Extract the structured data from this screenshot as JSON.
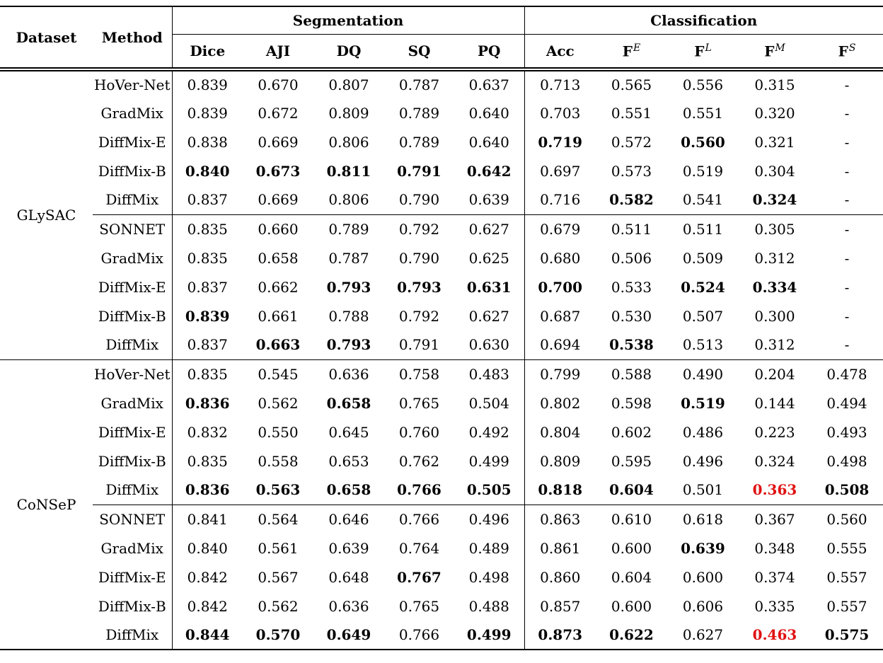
{
  "table": {
    "colors": {
      "highlight_red": "#e01212"
    },
    "header": {
      "dataset": "Dataset",
      "method": "Method",
      "groups": [
        {
          "label": "Segmentation",
          "columns": [
            {
              "base": "Dice",
              "sup": ""
            },
            {
              "base": "AJI",
              "sup": ""
            },
            {
              "base": "DQ",
              "sup": ""
            },
            {
              "base": "SQ",
              "sup": ""
            },
            {
              "base": "PQ",
              "sup": ""
            }
          ]
        },
        {
          "label": "Classification",
          "columns": [
            {
              "base": "Acc",
              "sup": ""
            },
            {
              "base": "F",
              "sup": "E"
            },
            {
              "base": "F",
              "sup": "L"
            },
            {
              "base": "F",
              "sup": "M"
            },
            {
              "base": "F",
              "sup": "S"
            }
          ]
        }
      ]
    },
    "datasets": [
      {
        "name": "GLySAC",
        "rows": [
          {
            "method": "HoVer-Net",
            "cells": [
              {
                "t": "0.839"
              },
              {
                "t": "0.670"
              },
              {
                "t": "0.807"
              },
              {
                "t": "0.787"
              },
              {
                "t": "0.637"
              },
              {
                "t": "0.713"
              },
              {
                "t": "0.565"
              },
              {
                "t": "0.556"
              },
              {
                "t": "0.315"
              },
              {
                "t": "-"
              }
            ]
          },
          {
            "method": "GradMix",
            "cells": [
              {
                "t": "0.839"
              },
              {
                "t": "0.672"
              },
              {
                "t": "0.809"
              },
              {
                "t": "0.789"
              },
              {
                "t": "0.640"
              },
              {
                "t": "0.703"
              },
              {
                "t": "0.551"
              },
              {
                "t": "0.551"
              },
              {
                "t": "0.320"
              },
              {
                "t": "-"
              }
            ]
          },
          {
            "method": "DiffMix-E",
            "cells": [
              {
                "t": "0.838"
              },
              {
                "t": "0.669"
              },
              {
                "t": "0.806"
              },
              {
                "t": "0.789"
              },
              {
                "t": "0.640"
              },
              {
                "t": "0.719",
                "b": true
              },
              {
                "t": "0.572"
              },
              {
                "t": "0.560",
                "b": true
              },
              {
                "t": "0.321"
              },
              {
                "t": "-"
              }
            ]
          },
          {
            "method": "DiffMix-B",
            "cells": [
              {
                "t": "0.840",
                "b": true
              },
              {
                "t": "0.673",
                "b": true
              },
              {
                "t": "0.811",
                "b": true
              },
              {
                "t": "0.791",
                "b": true
              },
              {
                "t": "0.642",
                "b": true
              },
              {
                "t": "0.697"
              },
              {
                "t": "0.573"
              },
              {
                "t": "0.519"
              },
              {
                "t": "0.304"
              },
              {
                "t": "-"
              }
            ]
          },
          {
            "method": "DiffMix",
            "cells": [
              {
                "t": "0.837"
              },
              {
                "t": "0.669"
              },
              {
                "t": "0.806"
              },
              {
                "t": "0.790"
              },
              {
                "t": "0.639"
              },
              {
                "t": "0.716"
              },
              {
                "t": "0.582",
                "b": true
              },
              {
                "t": "0.541"
              },
              {
                "t": "0.324",
                "b": true
              },
              {
                "t": "-"
              }
            ]
          },
          {
            "method": "SONNET",
            "rule_above": true,
            "cells": [
              {
                "t": "0.835"
              },
              {
                "t": "0.660"
              },
              {
                "t": "0.789"
              },
              {
                "t": "0.792"
              },
              {
                "t": "0.627"
              },
              {
                "t": "0.679"
              },
              {
                "t": "0.511"
              },
              {
                "t": "0.511"
              },
              {
                "t": "0.305"
              },
              {
                "t": "-"
              }
            ]
          },
          {
            "method": "GradMix",
            "cells": [
              {
                "t": "0.835"
              },
              {
                "t": "0.658"
              },
              {
                "t": "0.787"
              },
              {
                "t": "0.790"
              },
              {
                "t": "0.625"
              },
              {
                "t": "0.680"
              },
              {
                "t": "0.506"
              },
              {
                "t": "0.509"
              },
              {
                "t": "0.312"
              },
              {
                "t": "-"
              }
            ]
          },
          {
            "method": "DiffMix-E",
            "cells": [
              {
                "t": "0.837"
              },
              {
                "t": "0.662"
              },
              {
                "t": "0.793",
                "b": true
              },
              {
                "t": "0.793",
                "b": true
              },
              {
                "t": "0.631",
                "b": true
              },
              {
                "t": "0.700",
                "b": true
              },
              {
                "t": "0.533"
              },
              {
                "t": "0.524",
                "b": true
              },
              {
                "t": "0.334",
                "b": true
              },
              {
                "t": "-"
              }
            ]
          },
          {
            "method": "DiffMix-B",
            "cells": [
              {
                "t": "0.839",
                "b": true
              },
              {
                "t": "0.661"
              },
              {
                "t": "0.788"
              },
              {
                "t": "0.792"
              },
              {
                "t": "0.627"
              },
              {
                "t": "0.687"
              },
              {
                "t": "0.530"
              },
              {
                "t": "0.507"
              },
              {
                "t": "0.300"
              },
              {
                "t": "-"
              }
            ]
          },
          {
            "method": "DiffMix",
            "cells": [
              {
                "t": "0.837"
              },
              {
                "t": "0.663",
                "b": true
              },
              {
                "t": "0.793",
                "b": true
              },
              {
                "t": "0.791"
              },
              {
                "t": "0.630"
              },
              {
                "t": "0.694"
              },
              {
                "t": "0.538",
                "b": true
              },
              {
                "t": "0.513"
              },
              {
                "t": "0.312"
              },
              {
                "t": "-"
              }
            ]
          }
        ]
      },
      {
        "name": "CoNSeP",
        "rows": [
          {
            "method": "HoVer-Net",
            "cells": [
              {
                "t": "0.835"
              },
              {
                "t": "0.545"
              },
              {
                "t": "0.636"
              },
              {
                "t": "0.758"
              },
              {
                "t": "0.483"
              },
              {
                "t": "0.799"
              },
              {
                "t": "0.588"
              },
              {
                "t": "0.490"
              },
              {
                "t": "0.204"
              },
              {
                "t": "0.478"
              }
            ]
          },
          {
            "method": "GradMix",
            "cells": [
              {
                "t": "0.836",
                "b": true
              },
              {
                "t": "0.562"
              },
              {
                "t": "0.658",
                "b": true
              },
              {
                "t": "0.765"
              },
              {
                "t": "0.504"
              },
              {
                "t": "0.802"
              },
              {
                "t": "0.598"
              },
              {
                "t": "0.519",
                "b": true
              },
              {
                "t": "0.144"
              },
              {
                "t": "0.494"
              }
            ]
          },
          {
            "method": "DiffMix-E",
            "cells": [
              {
                "t": "0.832"
              },
              {
                "t": "0.550"
              },
              {
                "t": "0.645"
              },
              {
                "t": "0.760"
              },
              {
                "t": "0.492"
              },
              {
                "t": "0.804"
              },
              {
                "t": "0.602"
              },
              {
                "t": "0.486"
              },
              {
                "t": "0.223"
              },
              {
                "t": "0.493"
              }
            ]
          },
          {
            "method": "DiffMix-B",
            "cells": [
              {
                "t": "0.835"
              },
              {
                "t": "0.558"
              },
              {
                "t": "0.653"
              },
              {
                "t": "0.762"
              },
              {
                "t": "0.499"
              },
              {
                "t": "0.809"
              },
              {
                "t": "0.595"
              },
              {
                "t": "0.496"
              },
              {
                "t": "0.324"
              },
              {
                "t": "0.498"
              }
            ]
          },
          {
            "method": "DiffMix",
            "cells": [
              {
                "t": "0.836",
                "b": true
              },
              {
                "t": "0.563",
                "b": true
              },
              {
                "t": "0.658",
                "b": true
              },
              {
                "t": "0.766",
                "b": true
              },
              {
                "t": "0.505",
                "b": true
              },
              {
                "t": "0.818",
                "b": true
              },
              {
                "t": "0.604",
                "b": true
              },
              {
                "t": "0.501"
              },
              {
                "t": "0.363",
                "b": true,
                "r": true
              },
              {
                "t": "0.508",
                "b": true
              }
            ]
          },
          {
            "method": "SONNET",
            "rule_above": true,
            "cells": [
              {
                "t": "0.841"
              },
              {
                "t": "0.564"
              },
              {
                "t": "0.646"
              },
              {
                "t": "0.766"
              },
              {
                "t": "0.496"
              },
              {
                "t": "0.863"
              },
              {
                "t": "0.610"
              },
              {
                "t": "0.618"
              },
              {
                "t": "0.367"
              },
              {
                "t": "0.560"
              }
            ]
          },
          {
            "method": "GradMix",
            "cells": [
              {
                "t": "0.840"
              },
              {
                "t": "0.561"
              },
              {
                "t": "0.639"
              },
              {
                "t": "0.764"
              },
              {
                "t": "0.489"
              },
              {
                "t": "0.861"
              },
              {
                "t": "0.600"
              },
              {
                "t": "0.639",
                "b": true
              },
              {
                "t": "0.348"
              },
              {
                "t": "0.555"
              }
            ]
          },
          {
            "method": "DiffMix-E",
            "cells": [
              {
                "t": "0.842"
              },
              {
                "t": "0.567"
              },
              {
                "t": "0.648"
              },
              {
                "t": "0.767",
                "b": true
              },
              {
                "t": "0.498"
              },
              {
                "t": "0.860"
              },
              {
                "t": "0.604"
              },
              {
                "t": "0.600"
              },
              {
                "t": "0.374"
              },
              {
                "t": "0.557"
              }
            ]
          },
          {
            "method": "DiffMix-B",
            "cells": [
              {
                "t": "0.842"
              },
              {
                "t": "0.562"
              },
              {
                "t": "0.636"
              },
              {
                "t": "0.765"
              },
              {
                "t": "0.488"
              },
              {
                "t": "0.857"
              },
              {
                "t": "0.600"
              },
              {
                "t": "0.606"
              },
              {
                "t": "0.335"
              },
              {
                "t": "0.557"
              }
            ]
          },
          {
            "method": "DiffMix",
            "cells": [
              {
                "t": "0.844",
                "b": true
              },
              {
                "t": "0.570",
                "b": true
              },
              {
                "t": "0.649",
                "b": true
              },
              {
                "t": "0.766"
              },
              {
                "t": "0.499",
                "b": true
              },
              {
                "t": "0.873",
                "b": true
              },
              {
                "t": "0.622",
                "b": true
              },
              {
                "t": "0.627"
              },
              {
                "t": "0.463",
                "b": true,
                "r": true
              },
              {
                "t": "0.575",
                "b": true
              }
            ]
          }
        ]
      }
    ]
  }
}
